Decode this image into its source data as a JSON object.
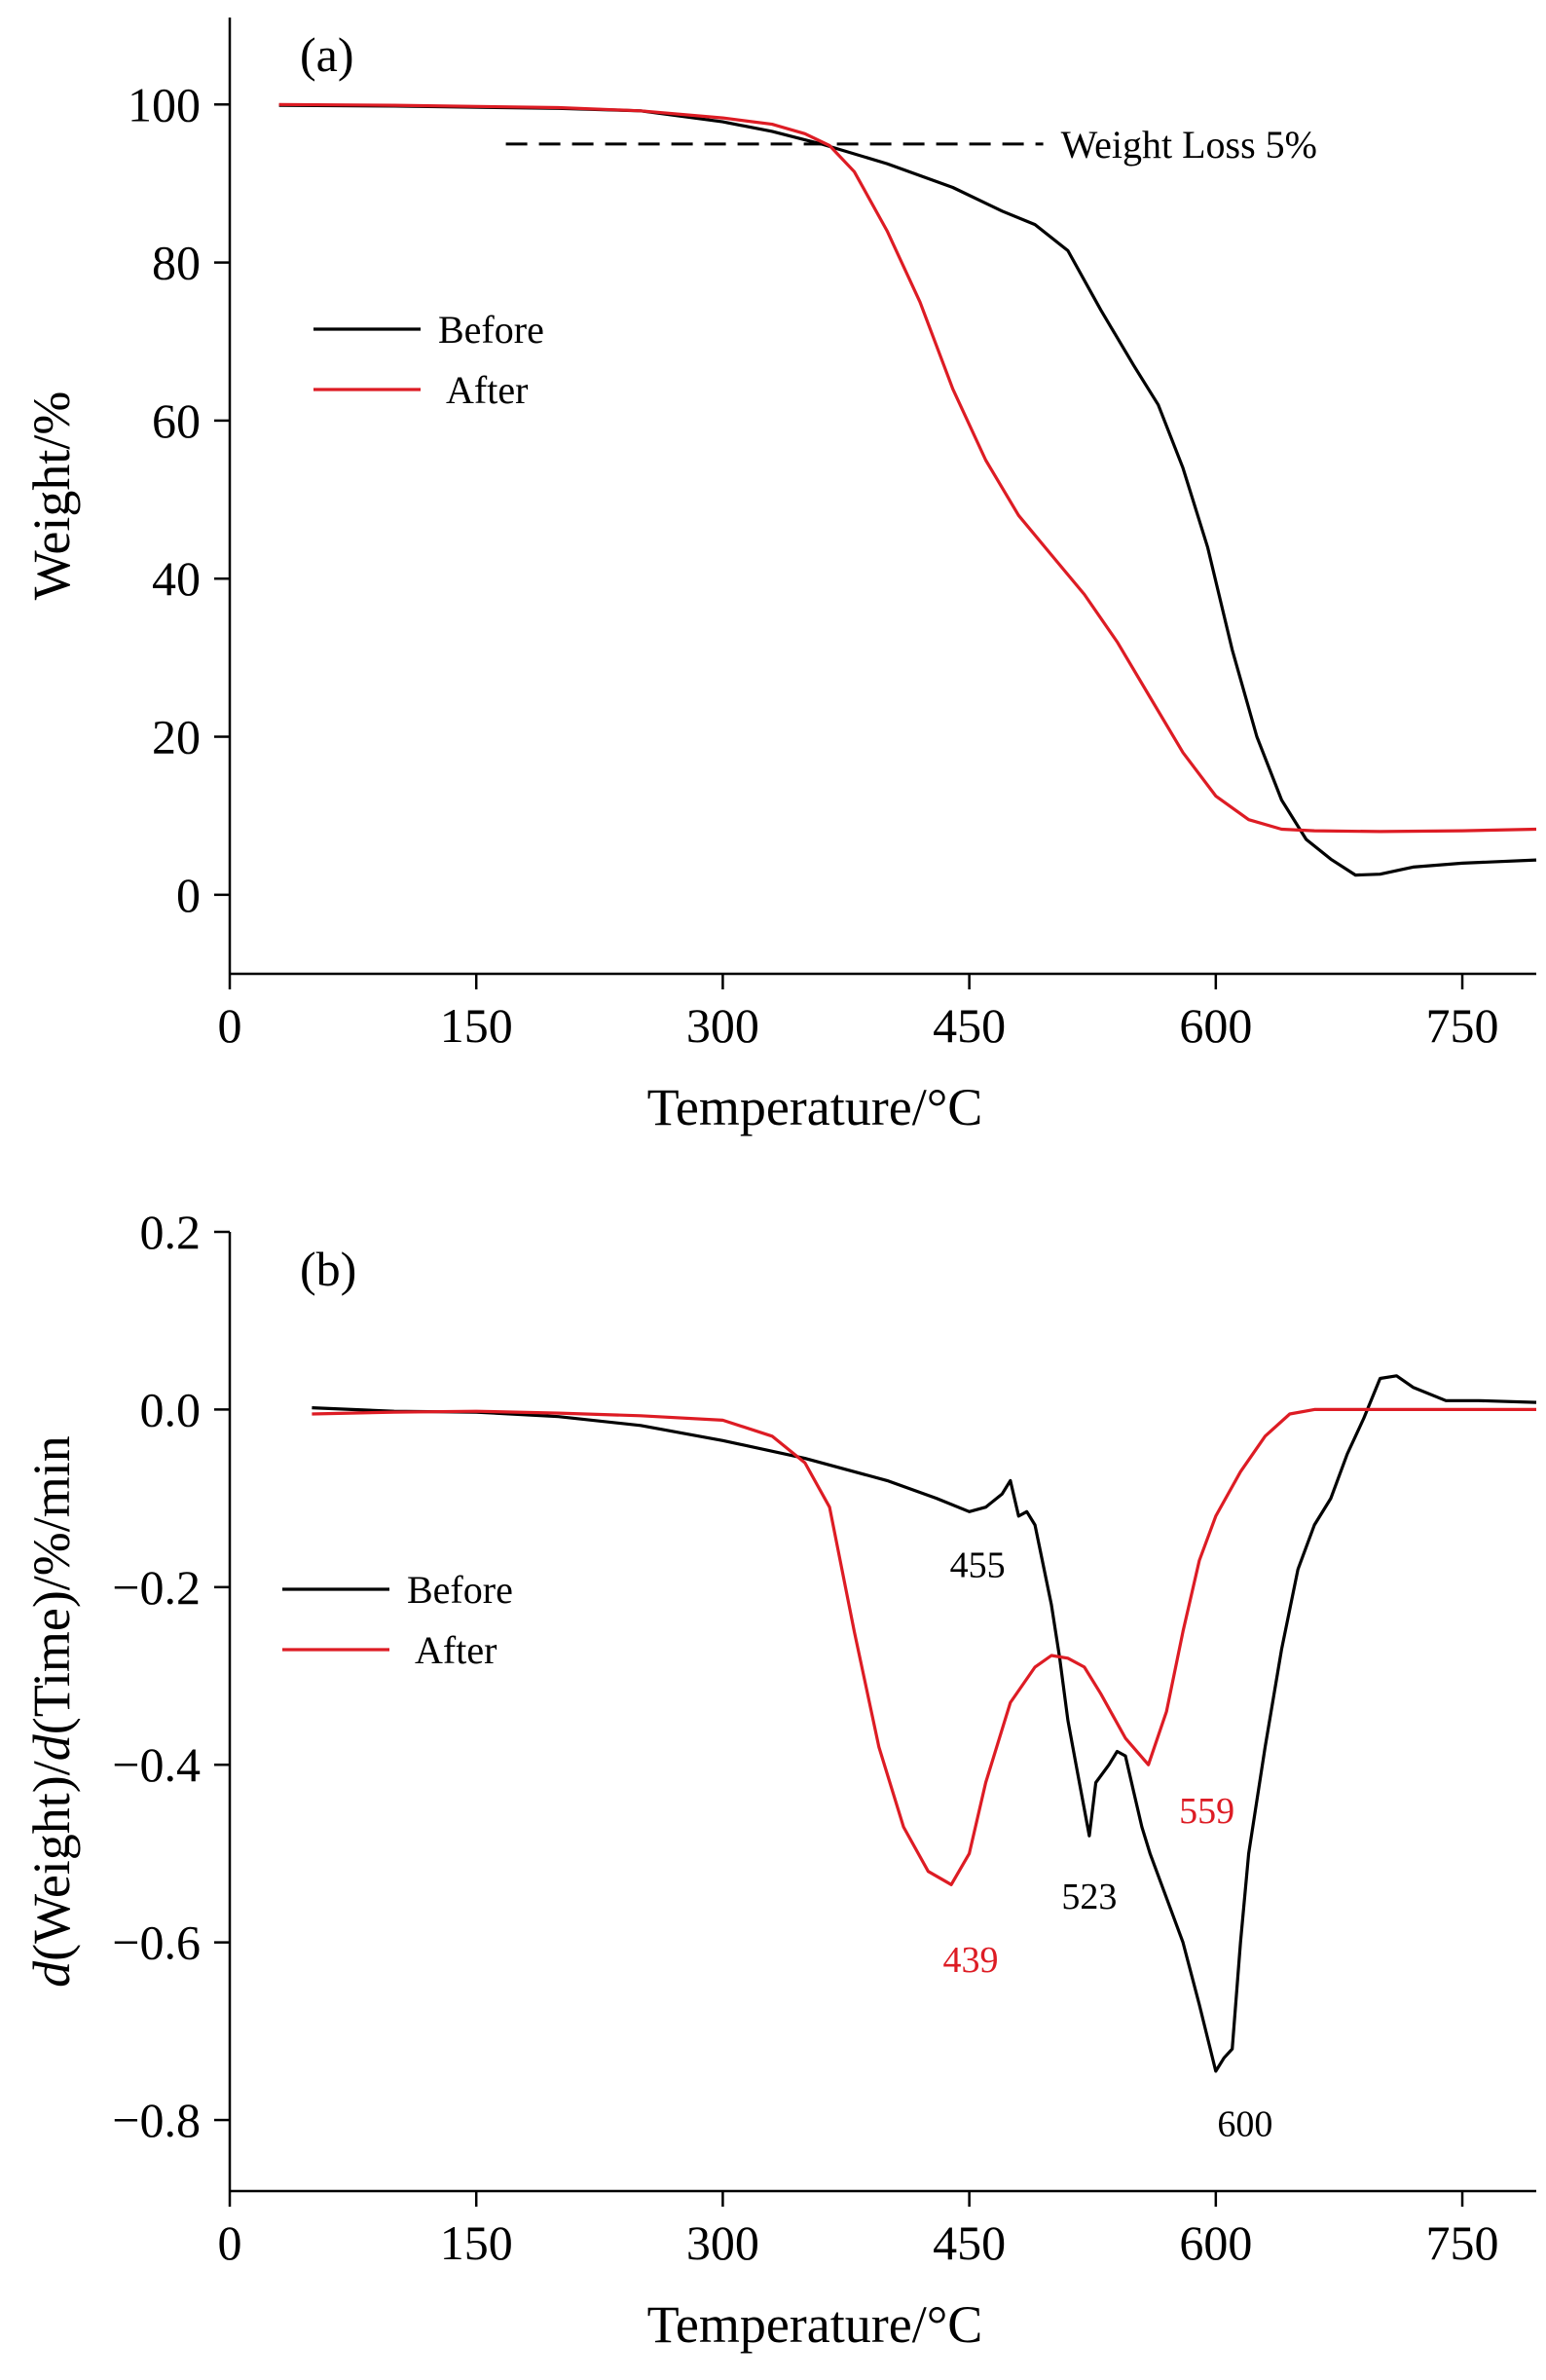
{
  "colors": {
    "before": "#000000",
    "after": "#dd1c24"
  },
  "chart_data": [
    {
      "type": "line",
      "panel_label": "(a)",
      "xlabel": "Temperature/°C",
      "ylabel": "Weight/%",
      "xlim": [
        0,
        795
      ],
      "ylim": [
        -10,
        111
      ],
      "xticks": [
        0,
        150,
        300,
        450,
        600,
        750
      ],
      "yticks": [
        0,
        20,
        40,
        60,
        80,
        100
      ],
      "legend": {
        "placement": "upper-left",
        "entries": [
          "Before",
          "After"
        ]
      },
      "annotations": [
        {
          "text": "Weight Loss 5%",
          "type": "dashed-reference-line",
          "y": 95,
          "x_range": [
            168,
            495
          ]
        }
      ],
      "series": [
        {
          "name": "Before",
          "color": "#000000",
          "points": [
            [
              30,
              99.9
            ],
            [
              100,
              99.8
            ],
            [
              200,
              99.5
            ],
            [
              250,
              99.2
            ],
            [
              300,
              97.8
            ],
            [
              330,
              96.6
            ],
            [
              360,
              95.0
            ],
            [
              400,
              92.5
            ],
            [
              440,
              89.5
            ],
            [
              470,
              86.5
            ],
            [
              490,
              84.8
            ],
            [
              510,
              81.5
            ],
            [
              530,
              74
            ],
            [
              550,
              67
            ],
            [
              565,
              62
            ],
            [
              580,
              54
            ],
            [
              595,
              44
            ],
            [
              610,
              31
            ],
            [
              625,
              20
            ],
            [
              640,
              12
            ],
            [
              655,
              7
            ],
            [
              670,
              4.5
            ],
            [
              685,
              2.5
            ],
            [
              700,
              2.6
            ],
            [
              720,
              3.5
            ],
            [
              750,
              4.0
            ],
            [
              795,
              4.4
            ]
          ]
        },
        {
          "name": "After",
          "color": "#dd1c24",
          "points": [
            [
              30,
              100
            ],
            [
              100,
              99.9
            ],
            [
              200,
              99.6
            ],
            [
              250,
              99.2
            ],
            [
              300,
              98.3
            ],
            [
              330,
              97.5
            ],
            [
              350,
              96.3
            ],
            [
              365,
              94.8
            ],
            [
              380,
              91.5
            ],
            [
              400,
              84
            ],
            [
              420,
              75
            ],
            [
              440,
              64
            ],
            [
              460,
              55
            ],
            [
              480,
              48
            ],
            [
              500,
              43
            ],
            [
              520,
              38
            ],
            [
              540,
              32
            ],
            [
              560,
              25
            ],
            [
              580,
              18
            ],
            [
              600,
              12.5
            ],
            [
              620,
              9.5
            ],
            [
              640,
              8.3
            ],
            [
              660,
              8.1
            ],
            [
              700,
              8.0
            ],
            [
              750,
              8.1
            ],
            [
              795,
              8.3
            ]
          ]
        }
      ]
    },
    {
      "type": "line",
      "panel_label": "(b)",
      "xlabel": "Temperature/°C",
      "ylabel_parts": [
        {
          "text": "d",
          "italic": true
        },
        {
          "text": "(Weight)/",
          "italic": false
        },
        {
          "text": "d",
          "italic": true
        },
        {
          "text": "(Time)/%/min",
          "italic": false
        }
      ],
      "xlim": [
        0,
        795
      ],
      "ylim": [
        -0.88,
        0.2
      ],
      "xticks": [
        0,
        150,
        300,
        450,
        600,
        750
      ],
      "yticks": [
        0.2,
        0.0,
        -0.2,
        -0.4,
        -0.6,
        -0.8
      ],
      "ytick_labels": [
        "0.2",
        "0.0",
        "−0.2",
        "−0.4",
        "−0.6",
        "−0.8"
      ],
      "legend": {
        "placement": "middle-left",
        "entries": [
          "Before",
          "After"
        ]
      },
      "annotations": [
        {
          "text": "455",
          "series": "Before",
          "x": 455,
          "y": -0.11
        },
        {
          "text": "523",
          "series": "Before",
          "x": 523,
          "y": -0.48
        },
        {
          "text": "600",
          "series": "Before",
          "x": 600,
          "y": -0.75
        },
        {
          "text": "439",
          "series": "After",
          "x": 439,
          "y": -0.54
        },
        {
          "text": "559",
          "series": "After",
          "x": 559,
          "y": -0.4
        }
      ],
      "series": [
        {
          "name": "Before",
          "color": "#000000",
          "points": [
            [
              50,
              0.002
            ],
            [
              100,
              -0.002
            ],
            [
              150,
              -0.003
            ],
            [
              200,
              -0.008
            ],
            [
              250,
              -0.018
            ],
            [
              300,
              -0.035
            ],
            [
              350,
              -0.055
            ],
            [
              400,
              -0.08
            ],
            [
              430,
              -0.1
            ],
            [
              450,
              -0.115
            ],
            [
              460,
              -0.11
            ],
            [
              470,
              -0.095
            ],
            [
              475,
              -0.08
            ],
            [
              480,
              -0.12
            ],
            [
              485,
              -0.115
            ],
            [
              490,
              -0.13
            ],
            [
              500,
              -0.22
            ],
            [
              505,
              -0.28
            ],
            [
              510,
              -0.35
            ],
            [
              515,
              -0.4
            ],
            [
              520,
              -0.45
            ],
            [
              523,
              -0.48
            ],
            [
              527,
              -0.42
            ],
            [
              535,
              -0.4
            ],
            [
              540,
              -0.385
            ],
            [
              545,
              -0.39
            ],
            [
              550,
              -0.43
            ],
            [
              555,
              -0.47
            ],
            [
              560,
              -0.5
            ],
            [
              570,
              -0.55
            ],
            [
              580,
              -0.6
            ],
            [
              590,
              -0.67
            ],
            [
              600,
              -0.745
            ],
            [
              605,
              -0.73
            ],
            [
              610,
              -0.72
            ],
            [
              615,
              -0.6
            ],
            [
              620,
              -0.5
            ],
            [
              630,
              -0.38
            ],
            [
              640,
              -0.27
            ],
            [
              650,
              -0.18
            ],
            [
              660,
              -0.13
            ],
            [
              670,
              -0.1
            ],
            [
              680,
              -0.05
            ],
            [
              690,
              -0.01
            ],
            [
              700,
              0.035
            ],
            [
              710,
              0.038
            ],
            [
              720,
              0.025
            ],
            [
              740,
              0.01
            ],
            [
              760,
              0.01
            ],
            [
              795,
              0.008
            ]
          ]
        },
        {
          "name": "After",
          "color": "#dd1c24",
          "points": [
            [
              50,
              -0.005
            ],
            [
              100,
              -0.003
            ],
            [
              150,
              -0.002
            ],
            [
              200,
              -0.004
            ],
            [
              250,
              -0.007
            ],
            [
              300,
              -0.012
            ],
            [
              330,
              -0.03
            ],
            [
              350,
              -0.06
            ],
            [
              365,
              -0.11
            ],
            [
              380,
              -0.25
            ],
            [
              395,
              -0.38
            ],
            [
              410,
              -0.47
            ],
            [
              425,
              -0.52
            ],
            [
              439,
              -0.535
            ],
            [
              450,
              -0.5
            ],
            [
              460,
              -0.42
            ],
            [
              475,
              -0.33
            ],
            [
              490,
              -0.29
            ],
            [
              500,
              -0.277
            ],
            [
              510,
              -0.28
            ],
            [
              520,
              -0.29
            ],
            [
              530,
              -0.32
            ],
            [
              545,
              -0.37
            ],
            [
              559,
              -0.4
            ],
            [
              570,
              -0.34
            ],
            [
              580,
              -0.25
            ],
            [
              590,
              -0.17
            ],
            [
              600,
              -0.12
            ],
            [
              615,
              -0.07
            ],
            [
              630,
              -0.03
            ],
            [
              645,
              -0.005
            ],
            [
              660,
              0.0
            ],
            [
              700,
              0.0
            ],
            [
              750,
              0.0
            ],
            [
              795,
              0.0
            ]
          ]
        }
      ]
    }
  ]
}
